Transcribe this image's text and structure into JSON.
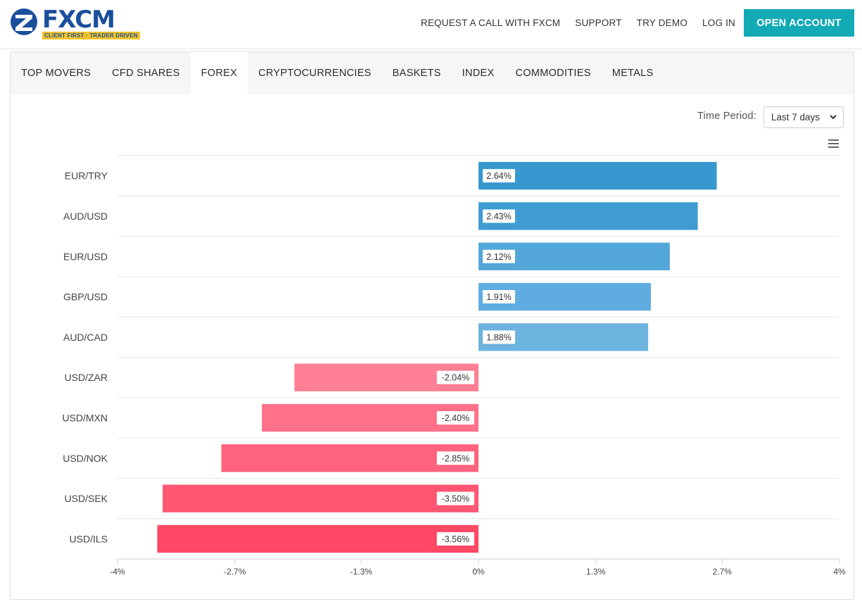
{
  "header": {
    "logo_text": "FXCM",
    "logo_tagline": "CLIENT FIRST · TRADER DRIVEN",
    "nav": [
      "REQUEST A CALL WITH FXCM",
      "SUPPORT",
      "TRY DEMO",
      "LOG IN"
    ],
    "cta_label": "OPEN ACCOUNT",
    "colors": {
      "brand": "#1a4f9c",
      "cta": "#13a9b5",
      "tagline_bg": "#f2c32a"
    }
  },
  "tabs": {
    "items": [
      "TOP MOVERS",
      "CFD SHARES",
      "FOREX",
      "CRYPTOCURRENCIES",
      "BASKETS",
      "INDEX",
      "COMMODITIES",
      "METALS"
    ],
    "active_index": 2
  },
  "controls": {
    "time_period_label": "Time Period:",
    "time_period_value": "Last 7 days",
    "menu_icon": "hamburger-menu-icon"
  },
  "chart_data": {
    "type": "bar",
    "orientation": "horizontal",
    "categories": [
      "EUR/TRY",
      "AUD/USD",
      "EUR/USD",
      "GBP/USD",
      "AUD/CAD",
      "USD/ZAR",
      "USD/MXN",
      "USD/NOK",
      "USD/SEK",
      "USD/ILS"
    ],
    "values": [
      2.64,
      2.43,
      2.12,
      1.91,
      1.88,
      -2.04,
      -2.4,
      -2.85,
      -3.5,
      -3.56
    ],
    "data_labels": [
      "2.64%",
      "2.43%",
      "2.12%",
      "1.91%",
      "1.88%",
      "-2.04%",
      "-2.40%",
      "-2.85%",
      "-3.50%",
      "-3.56%"
    ],
    "x_ticks": [
      -4,
      -2.7,
      -1.3,
      0,
      1.3,
      2.7,
      4
    ],
    "x_tick_labels": [
      "-4%",
      "-2.7%",
      "-1.3%",
      "0%",
      "1.3%",
      "2.7%",
      "4%"
    ],
    "xlim": [
      -4,
      4
    ],
    "grid": true,
    "colors": {
      "positive": [
        "#3798d0",
        "#3f9cd3",
        "#53a7d8",
        "#5fade0",
        "#6cb4de"
      ],
      "negative": [
        "#ff7f94",
        "#ff7189",
        "#ff637e",
        "#ff5672",
        "#ff4866"
      ]
    }
  }
}
